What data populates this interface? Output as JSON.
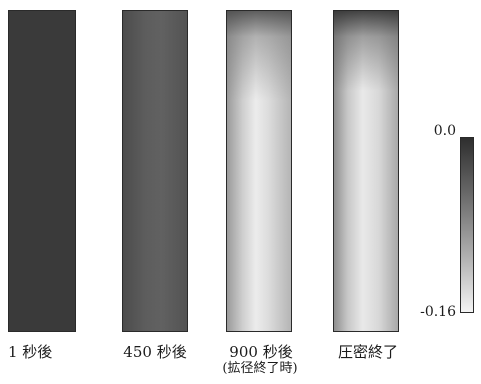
{
  "panels": [
    {
      "label": "1 秒後"
    },
    {
      "label": "450 秒後"
    },
    {
      "label": "900 秒後",
      "sublabel": "(拡径終了時)"
    },
    {
      "label": "圧密終了"
    }
  ],
  "colorbar": {
    "max_label": "0.0",
    "min_label": "-0.16",
    "max_value": 0.0,
    "min_value": -0.16,
    "top_color": "#2e2e2e",
    "bottom_color": "#f4f4f4"
  }
}
